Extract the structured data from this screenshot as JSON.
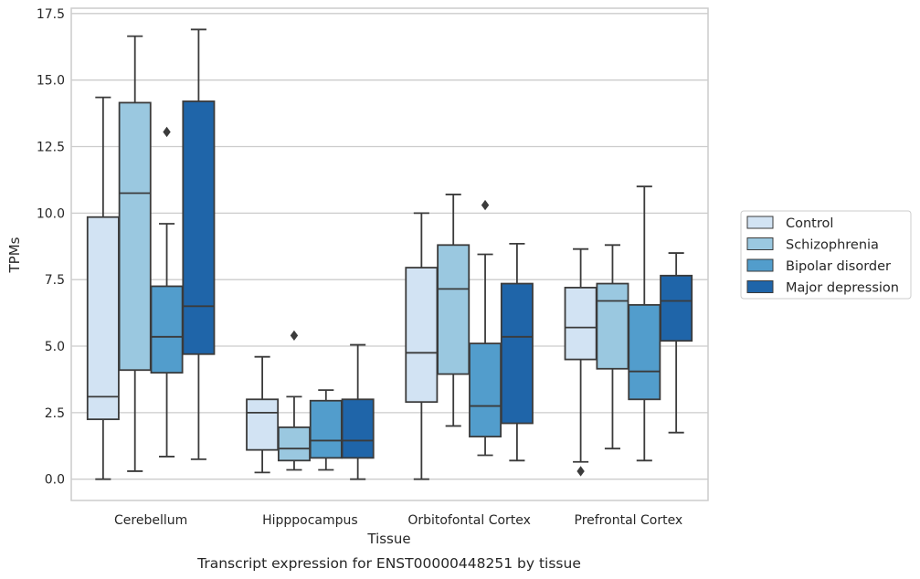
{
  "chart_data": {
    "type": "box",
    "caption": "Transcript expression for ENST00000448251 by tissue",
    "xlabel": "Tissue",
    "ylabel": "TPMs",
    "ylim": [
      -0.8,
      17.7
    ],
    "yticks": [
      "0.0",
      "2.5",
      "5.0",
      "7.5",
      "10.0",
      "12.5",
      "15.0",
      "17.5"
    ],
    "ytick_values": [
      0,
      2.5,
      5,
      7.5,
      10,
      12.5,
      15,
      17.5
    ],
    "grid": "horizontal",
    "legend_position": "right",
    "categories": [
      "Cerebellum",
      "Hipppocampus",
      "Orbitofontal Cortex",
      "Prefrontal Cortex"
    ],
    "series": [
      {
        "name": "Control",
        "color": "#d2e3f3",
        "boxes": [
          {
            "min": 0.0,
            "q1": 2.25,
            "median": 3.1,
            "q3": 9.85,
            "max": 14.35,
            "outliers": []
          },
          {
            "min": 0.25,
            "q1": 1.1,
            "median": 2.5,
            "q3": 3.0,
            "max": 4.6,
            "outliers": []
          },
          {
            "min": 0.0,
            "q1": 2.9,
            "median": 4.75,
            "q3": 7.95,
            "max": 10.0,
            "outliers": []
          },
          {
            "min": 0.65,
            "q1": 4.5,
            "median": 5.7,
            "q3": 7.2,
            "max": 8.65,
            "outliers": [
              0.3
            ]
          }
        ]
      },
      {
        "name": "Schizophrenia",
        "color": "#9ac8e0",
        "boxes": [
          {
            "min": 0.3,
            "q1": 4.1,
            "median": 10.75,
            "q3": 14.15,
            "max": 16.65,
            "outliers": []
          },
          {
            "min": 0.35,
            "q1": 0.7,
            "median": 1.15,
            "q3": 1.95,
            "max": 3.1,
            "outliers": [
              5.4
            ]
          },
          {
            "min": 2.0,
            "q1": 3.95,
            "median": 7.15,
            "q3": 8.8,
            "max": 10.7,
            "outliers": []
          },
          {
            "min": 1.15,
            "q1": 4.15,
            "median": 6.7,
            "q3": 7.35,
            "max": 8.8,
            "outliers": []
          }
        ]
      },
      {
        "name": "Bipolar disorder",
        "color": "#529dcc",
        "boxes": [
          {
            "min": 0.85,
            "q1": 4.0,
            "median": 5.35,
            "q3": 7.25,
            "max": 9.6,
            "outliers": [
              13.05
            ]
          },
          {
            "min": 0.35,
            "q1": 0.8,
            "median": 1.45,
            "q3": 2.95,
            "max": 3.35,
            "outliers": []
          },
          {
            "min": 0.9,
            "q1": 1.6,
            "median": 2.75,
            "q3": 5.1,
            "max": 8.45,
            "outliers": [
              10.3
            ]
          },
          {
            "min": 0.7,
            "q1": 3.0,
            "median": 4.05,
            "q3": 6.55,
            "max": 11.0,
            "outliers": []
          }
        ]
      },
      {
        "name": "Major depression",
        "color": "#1f65a9",
        "boxes": [
          {
            "min": 0.75,
            "q1": 4.7,
            "median": 6.5,
            "q3": 14.2,
            "max": 16.9,
            "outliers": []
          },
          {
            "min": 0.0,
            "q1": 0.8,
            "median": 1.45,
            "q3": 3.0,
            "max": 5.05,
            "outliers": []
          },
          {
            "min": 0.7,
            "q1": 2.1,
            "median": 5.35,
            "q3": 7.35,
            "max": 8.85,
            "outliers": []
          },
          {
            "min": 1.75,
            "q1": 5.2,
            "median": 6.7,
            "q3": 7.65,
            "max": 8.5,
            "outliers": []
          }
        ]
      }
    ]
  }
}
